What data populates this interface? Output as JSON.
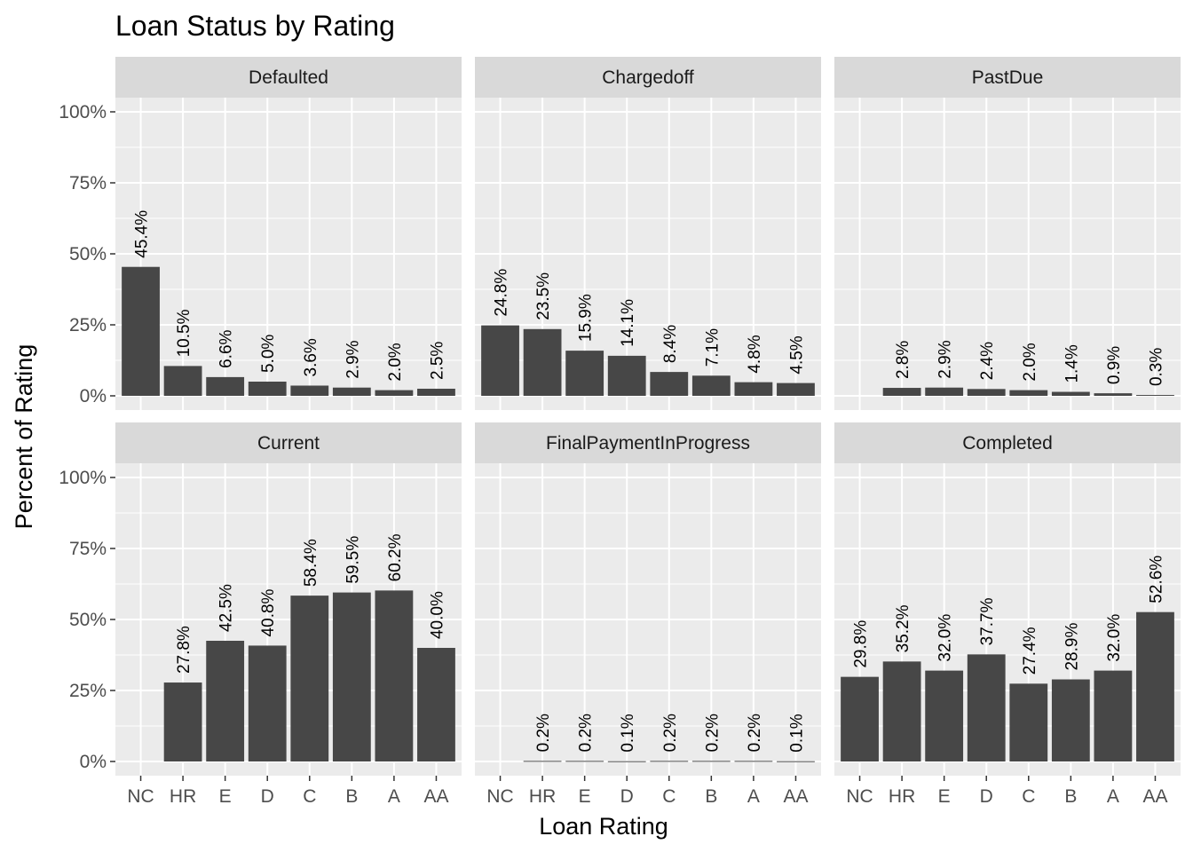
{
  "chart_data": {
    "type": "bar",
    "title": "Loan Status by Rating",
    "xlabel": "Loan Rating",
    "ylabel": "Percent of Rating",
    "ylim": [
      0,
      1
    ],
    "y_ticks": [
      "0%",
      "25%",
      "50%",
      "75%",
      "100%"
    ],
    "y_tick_values": [
      0,
      0.25,
      0.5,
      0.75,
      1.0
    ],
    "categories": [
      "NC",
      "HR",
      "E",
      "D",
      "C",
      "B",
      "A",
      "AA"
    ],
    "grid": true,
    "bar_color": "#474747",
    "panel_background": "#ebebeb",
    "strip_background": "#d9d9d9",
    "facets": [
      {
        "name": "Defaulted",
        "values": [
          0.454,
          0.105,
          0.066,
          0.05,
          0.036,
          0.029,
          0.02,
          0.025
        ],
        "labels": [
          "45.4%",
          "10.5%",
          "6.6%",
          "5.0%",
          "3.6%",
          "2.9%",
          "2.0%",
          "2.5%"
        ]
      },
      {
        "name": "Chargedoff",
        "values": [
          0.248,
          0.235,
          0.159,
          0.141,
          0.084,
          0.071,
          0.048,
          0.045
        ],
        "labels": [
          "24.8%",
          "23.5%",
          "15.9%",
          "14.1%",
          "8.4%",
          "7.1%",
          "4.8%",
          "4.5%"
        ]
      },
      {
        "name": "PastDue",
        "values": [
          null,
          0.028,
          0.029,
          0.024,
          0.02,
          0.014,
          0.009,
          0.003
        ],
        "labels": [
          null,
          "2.8%",
          "2.9%",
          "2.4%",
          "2.0%",
          "1.4%",
          "0.9%",
          "0.3%"
        ]
      },
      {
        "name": "Current",
        "values": [
          null,
          0.278,
          0.425,
          0.408,
          0.584,
          0.595,
          0.602,
          0.4
        ],
        "labels": [
          null,
          "27.8%",
          "42.5%",
          "40.8%",
          "58.4%",
          "59.5%",
          "60.2%",
          "40.0%"
        ]
      },
      {
        "name": "FinalPaymentInProgress",
        "values": [
          null,
          0.002,
          0.002,
          0.001,
          0.002,
          0.002,
          0.002,
          0.001
        ],
        "labels": [
          null,
          "0.2%",
          "0.2%",
          "0.1%",
          "0.2%",
          "0.2%",
          "0.2%",
          "0.1%"
        ]
      },
      {
        "name": "Completed",
        "values": [
          0.298,
          0.352,
          0.32,
          0.377,
          0.274,
          0.289,
          0.32,
          0.526
        ],
        "labels": [
          "29.8%",
          "35.2%",
          "32.0%",
          "37.7%",
          "27.4%",
          "28.9%",
          "32.0%",
          "52.6%"
        ]
      }
    ]
  }
}
